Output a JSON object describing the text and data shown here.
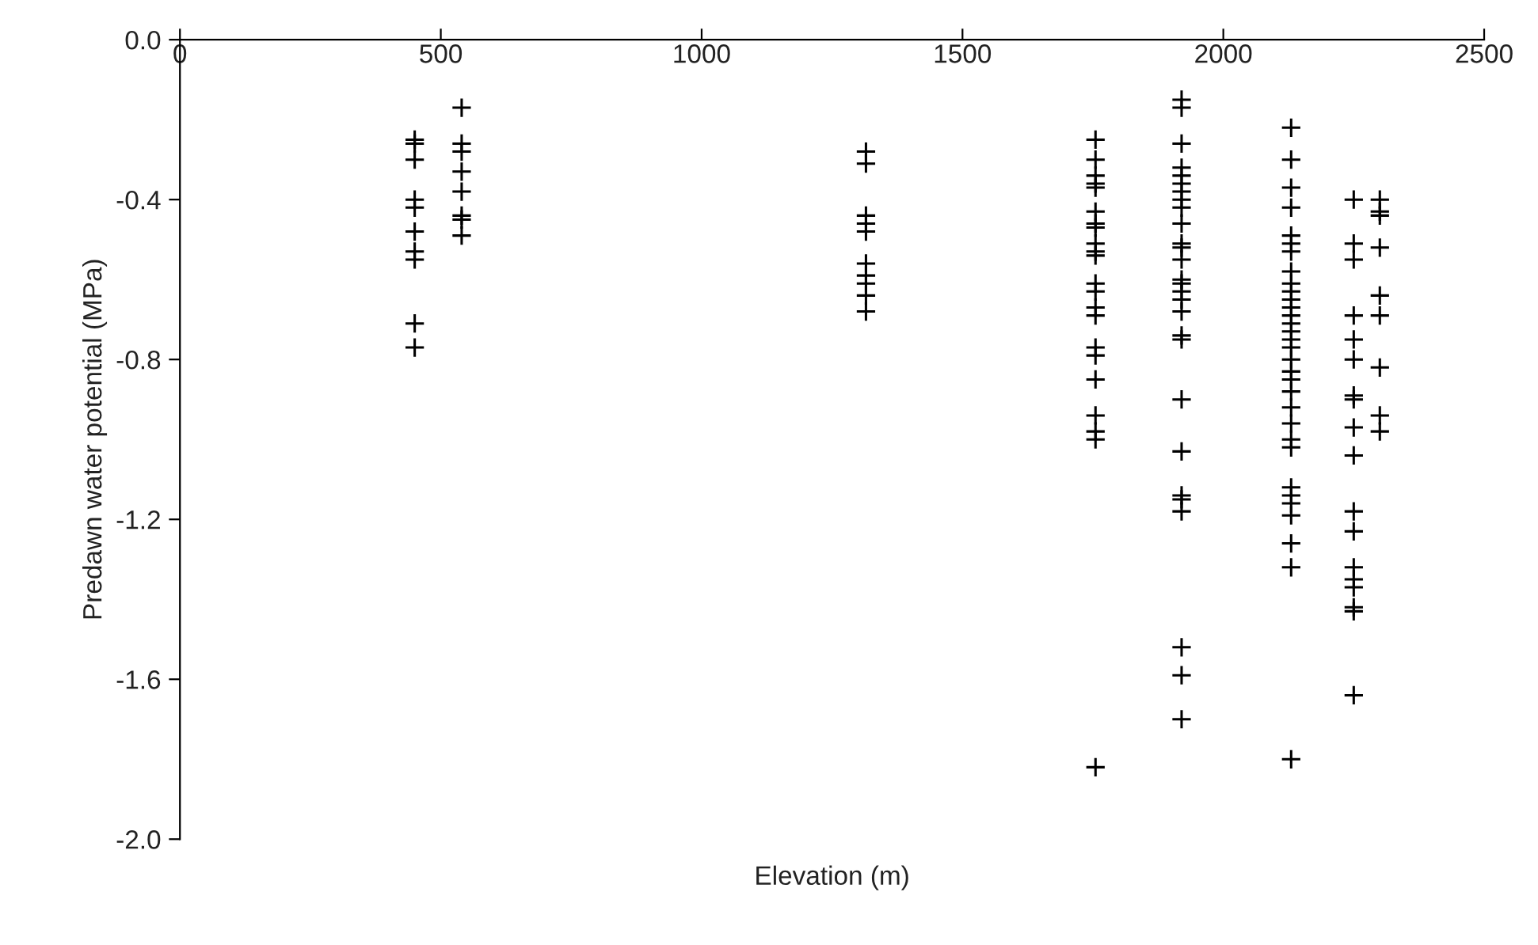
{
  "chart_data": {
    "type": "scatter",
    "xlabel": "Elevation (m)",
    "ylabel": "Predawn water potential (MPa)",
    "xlim": [
      0,
      2500
    ],
    "xticks": [
      0,
      500,
      1000,
      1500,
      2000,
      2500
    ],
    "ylim": [
      -2.0,
      0
    ],
    "yticks": [
      {
        "value": 0,
        "label": "0.0"
      },
      {
        "value": -0.4,
        "label": "-0.4"
      },
      {
        "value": -0.8,
        "label": "-0.8"
      },
      {
        "value": -1.2,
        "label": "-1.2"
      },
      {
        "value": -1.6,
        "label": "-1.6"
      },
      {
        "value": -2.0,
        "label": "-2.0"
      }
    ],
    "grid": false,
    "legend": false,
    "marker": "cross",
    "series": [
      {
        "color": "#000000",
        "x": [
          450,
          450,
          450,
          450,
          450,
          450,
          450,
          450,
          450,
          450
        ],
        "values": [
          -0.25,
          -0.26,
          -0.3,
          -0.4,
          -0.42,
          -0.48,
          -0.53,
          -0.55,
          -0.71,
          -0.77
        ]
      },
      {
        "color": "#000000",
        "x": [
          540,
          540,
          540,
          540,
          540,
          540,
          540,
          540
        ],
        "values": [
          -0.17,
          -0.26,
          -0.28,
          -0.33,
          -0.38,
          -0.44,
          -0.45,
          -0.49
        ]
      },
      {
        "color": "#000000",
        "x": [
          1315,
          1315,
          1315,
          1315,
          1315,
          1315,
          1315,
          1315,
          1315,
          1315
        ],
        "values": [
          -0.28,
          -0.31,
          -0.44,
          -0.46,
          -0.48,
          -0.56,
          -0.59,
          -0.61,
          -0.64,
          -0.68
        ]
      },
      {
        "color": "#000000",
        "x": [
          1755,
          1755,
          1755,
          1755,
          1755,
          1755,
          1755,
          1755,
          1755,
          1755,
          1755,
          1755,
          1755,
          1755,
          1755,
          1755,
          1755,
          1755,
          1755,
          1755,
          1755,
          1755
        ],
        "values": [
          -0.25,
          -0.3,
          -0.34,
          -0.36,
          -0.37,
          -0.43,
          -0.46,
          -0.47,
          -0.51,
          -0.53,
          -0.54,
          -0.61,
          -0.63,
          -0.67,
          -0.69,
          -0.77,
          -0.79,
          -0.85,
          -0.94,
          -0.98,
          -1.0,
          -1.82
        ]
      },
      {
        "color": "#000000",
        "x": [
          1920,
          1920,
          1920,
          1920,
          1920,
          1920,
          1920,
          1920,
          1920,
          1920,
          1920,
          1920,
          1920,
          1920,
          1920,
          1920,
          1920,
          1920,
          1920,
          1920,
          1920,
          1920,
          1920,
          1920,
          1920,
          1920,
          1920,
          1920
        ],
        "values": [
          -0.15,
          -0.17,
          -0.26,
          -0.32,
          -0.34,
          -0.36,
          -0.38,
          -0.4,
          -0.42,
          -0.46,
          -0.51,
          -0.52,
          -0.55,
          -0.6,
          -0.61,
          -0.63,
          -0.65,
          -0.68,
          -0.74,
          -0.75,
          -0.9,
          -1.03,
          -1.14,
          -1.15,
          -1.18,
          -1.52,
          -1.59,
          -1.7
        ]
      },
      {
        "color": "#000000",
        "x": [
          2130,
          2130,
          2130,
          2130,
          2130,
          2130,
          2130,
          2130,
          2130,
          2130,
          2130,
          2130,
          2130,
          2130,
          2130,
          2130,
          2130,
          2130,
          2130,
          2130,
          2130,
          2130,
          2130,
          2130,
          2130,
          2130,
          2130,
          2130,
          2130,
          2130,
          2130,
          2130
        ],
        "values": [
          -0.22,
          -0.3,
          -0.37,
          -0.42,
          -0.49,
          -0.51,
          -0.53,
          -0.58,
          -0.61,
          -0.63,
          -0.65,
          -0.67,
          -0.69,
          -0.71,
          -0.73,
          -0.75,
          -0.77,
          -0.8,
          -0.83,
          -0.85,
          -0.88,
          -0.92,
          -0.96,
          -1.0,
          -1.02,
          -1.12,
          -1.14,
          -1.16,
          -1.19,
          -1.26,
          -1.32,
          -1.8
        ]
      },
      {
        "color": "#000000",
        "x": [
          2250,
          2250,
          2250,
          2250,
          2250,
          2250,
          2250,
          2250,
          2250,
          2250,
          2250,
          2250,
          2250,
          2250,
          2250,
          2250,
          2250,
          2250
        ],
        "values": [
          -0.4,
          -0.51,
          -0.55,
          -0.69,
          -0.75,
          -0.8,
          -0.89,
          -0.9,
          -0.97,
          -1.04,
          -1.18,
          -1.23,
          -1.32,
          -1.35,
          -1.37,
          -1.42,
          -1.43,
          -1.64
        ]
      },
      {
        "color": "#000000",
        "x": [
          2300,
          2300,
          2300,
          2300,
          2300,
          2300,
          2300,
          2300,
          2300
        ],
        "values": [
          -0.4,
          -0.43,
          -0.44,
          -0.52,
          -0.64,
          -0.69,
          -0.82,
          -0.94,
          -0.98
        ]
      }
    ]
  }
}
